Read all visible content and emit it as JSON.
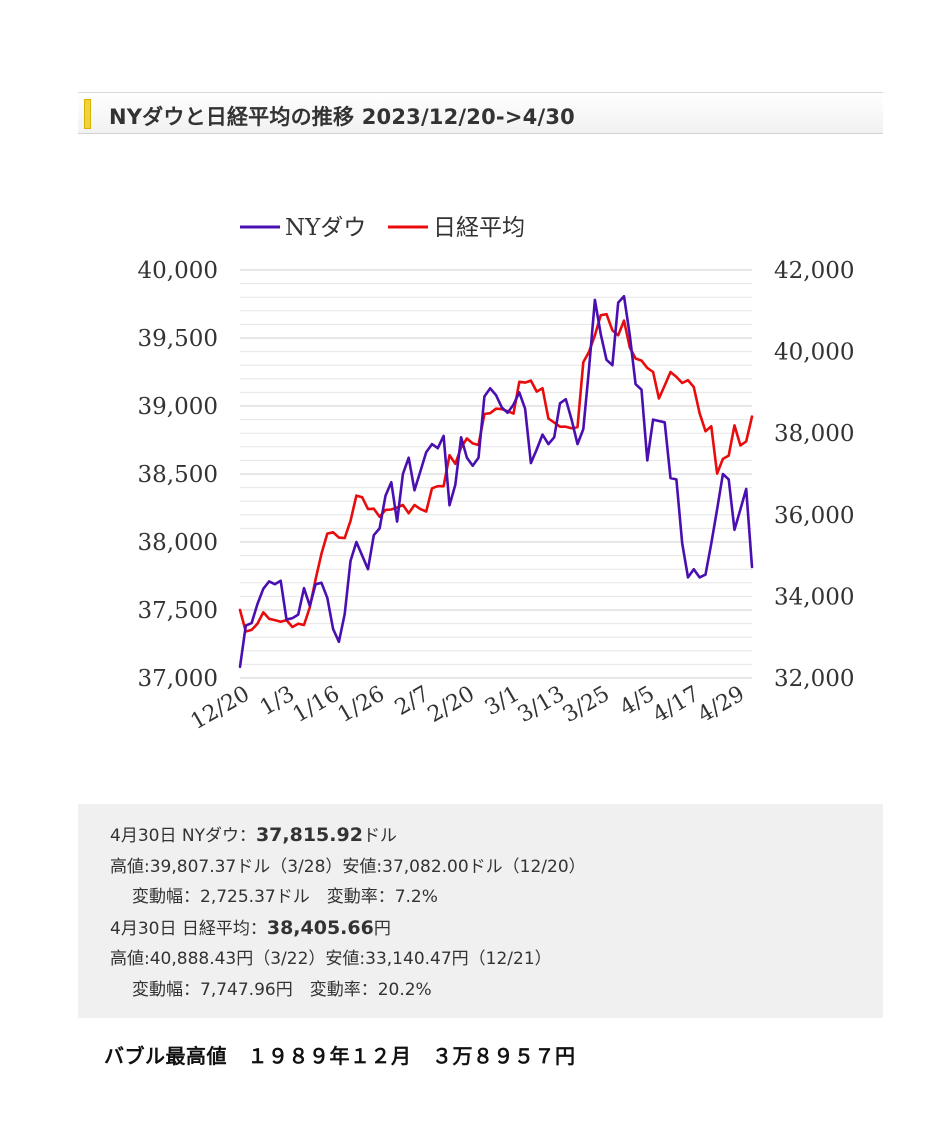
{
  "title": "NYダウと日経平均の推移 2023/12/20->4/30",
  "chart_data": {
    "type": "line",
    "legend": [
      "NYダウ",
      "日経平均"
    ],
    "legend_position": "top-left",
    "colors": {
      "dow": "#4a0fb0",
      "nikkei": "#e80c0c"
    },
    "grid": true,
    "left_axis": {
      "ylim": [
        37000,
        40000
      ],
      "ticks": [
        "37,000",
        "37,500",
        "38,000",
        "38,500",
        "39,000",
        "39,500",
        "40,000"
      ]
    },
    "right_axis": {
      "ylim": [
        32000,
        42000
      ],
      "ticks": [
        "32,000",
        "34,000",
        "36,000",
        "38,000",
        "40,000",
        "42,000"
      ]
    },
    "x_tick_labels": [
      "12/20",
      "1/3",
      "1/16",
      "1/26",
      "2/7",
      "2/20",
      "3/1",
      "3/13",
      "3/25",
      "4/5",
      "4/17",
      "4/29"
    ],
    "series": [
      {
        "name": "NYダウ",
        "axis": "left",
        "values": [
          37082,
          37385,
          37404,
          37545,
          37656,
          37710,
          37690,
          37715,
          37430,
          37440,
          37466,
          37660,
          37530,
          37690,
          37700,
          37590,
          37360,
          37266,
          37470,
          37860,
          38000,
          37900,
          37800,
          38050,
          38100,
          38340,
          38440,
          38150,
          38500,
          38620,
          38380,
          38520,
          38660,
          38720,
          38690,
          38780,
          38270,
          38420,
          38770,
          38620,
          38560,
          38620,
          39070,
          39130,
          39080,
          38990,
          38950,
          39010,
          39100,
          38980,
          38580,
          38680,
          38790,
          38720,
          38770,
          39020,
          39050,
          38900,
          38720,
          38830,
          39280,
          39780,
          39530,
          39340,
          39300,
          39760,
          39807,
          39520,
          39160,
          39120,
          38600,
          38900,
          38890,
          38880,
          38470,
          38460,
          37990,
          37740,
          37800,
          37740,
          37760,
          37990,
          38240,
          38500,
          38460,
          38090,
          38240,
          38390,
          37815.92
        ]
      },
      {
        "name": "日経平均",
        "axis": "right",
        "values": [
          33670,
          33140,
          33180,
          33330,
          33610,
          33450,
          33420,
          33380,
          33420,
          33250,
          33330,
          33300,
          33730,
          34420,
          35050,
          35540,
          35570,
          35440,
          35430,
          35850,
          36470,
          36430,
          36140,
          36150,
          35950,
          36120,
          36130,
          36180,
          36240,
          36040,
          36240,
          36140,
          36080,
          36650,
          36700,
          36700,
          37460,
          37250,
          37650,
          37870,
          37750,
          37710,
          38470,
          38490,
          38600,
          38590,
          38540,
          38480,
          39260,
          39240,
          39290,
          39020,
          39100,
          38360,
          38260,
          38160,
          38160,
          38120,
          38150,
          39740,
          40000,
          40400,
          40890,
          40920,
          40520,
          40400,
          40760,
          40100,
          39830,
          39780,
          39600,
          39500,
          38850,
          39170,
          39500,
          39380,
          39230,
          39300,
          39130,
          38490,
          38050,
          38170,
          37010,
          37370,
          37450,
          38190,
          37700,
          37800,
          38405.66
        ]
      }
    ]
  },
  "info": {
    "line1_prefix": "4月30日 NYダウ：",
    "line1_value": "37,815.92",
    "line1_unit": "ドル",
    "line2": "高値:39,807.37ドル（3/28）安値:37,082.00ドル（12/20）",
    "line3": "変動幅：2,725.37ドル　変動率：7.2%",
    "line4_prefix": "4月30日 日経平均：",
    "line4_value": "38,405.66",
    "line4_unit": "円",
    "line5": "高値:40,888.43円（3/22）安値:33,140.47円（12/21）",
    "line6": "変動幅：7,747.96円　変動率：20.2%"
  },
  "bubble_note": "バブル最高値　１９８９年１２月　３万８９５７円"
}
